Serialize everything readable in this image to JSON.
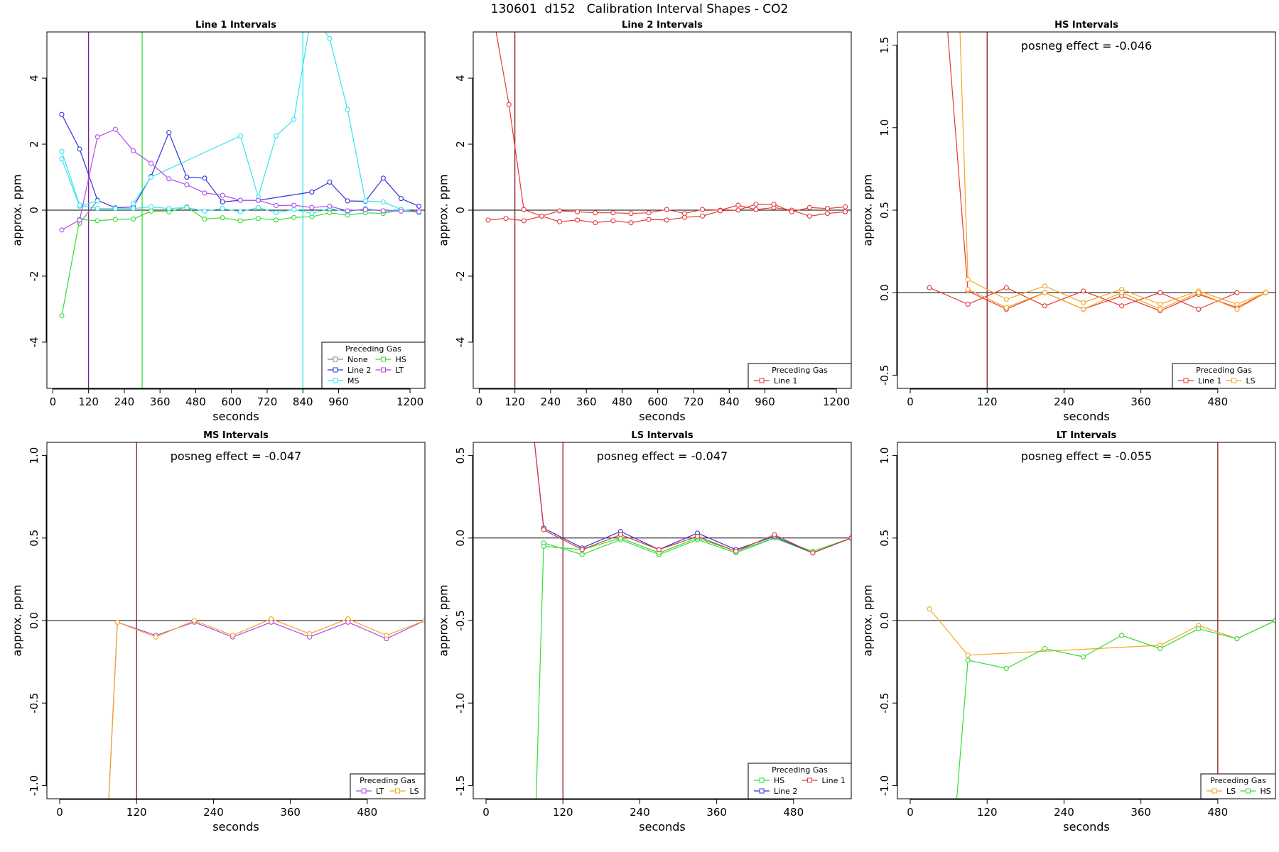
{
  "page_title": "130601  d152   Calibration Interval Shapes - CO2",
  "colors": {
    "None": "#888888",
    "Line 1": "#e53935",
    "Line 2": "#3333dd",
    "HS": "#33dd33",
    "MS": "#33e5f0",
    "LT": "#b04be8",
    "LS": "#f5a623",
    "refline_dark": "#8b1a1a",
    "axis": "#000000"
  },
  "chart_data": [
    {
      "type": "line",
      "title": "Line 1 Intervals",
      "xlabel": "seconds",
      "ylabel": "approx. ppm",
      "xlim": [
        -20,
        1250
      ],
      "ylim": [
        -5.4,
        5.4
      ],
      "xticks": [
        0,
        120,
        240,
        360,
        480,
        600,
        720,
        840,
        960,
        1200
      ],
      "yticks": [
        -4,
        -2,
        0,
        2,
        4
      ],
      "vlines": [
        {
          "x": 120,
          "color": "#7b1fa2"
        },
        {
          "x": 300,
          "color": "#33dd33"
        },
        {
          "x": 840,
          "color": "#33e5f0"
        }
      ],
      "legend": {
        "title": "Preceding Gas",
        "position": "bottom-right",
        "entries": [
          "None",
          "HS",
          "Line 2",
          "LT",
          "MS"
        ]
      },
      "series": [
        {
          "name": "None",
          "color": "#888888",
          "x": [
            90,
            150
          ],
          "y": [
            -0.4,
            0.3
          ]
        },
        {
          "name": "Line 2",
          "color": "#3333dd",
          "x": [
            30,
            90,
            150,
            210,
            270,
            330,
            390,
            450,
            510,
            570
          ],
          "y": [
            2.9,
            1.85,
            0.3,
            0.07,
            0.1,
            1.02,
            2.35,
            1.0,
            0.97,
            0.25
          ]
        },
        {
          "name": "Line 2",
          "color": "#3333dd",
          "x": [
            570,
            630,
            690,
            870,
            930,
            990,
            1050,
            1110,
            1170,
            1230
          ],
          "y": [
            0.25,
            0.3,
            0.3,
            0.55,
            0.85,
            0.28,
            0.27,
            0.97,
            0.35,
            0.12
          ]
        },
        {
          "name": "HS",
          "color": "#33dd33",
          "x": [
            30,
            90,
            150,
            210,
            270,
            330,
            390,
            450,
            510,
            570,
            630,
            690,
            750,
            810,
            870,
            930,
            990,
            1050,
            1110,
            1170,
            1230
          ],
          "y": [
            -3.2,
            -0.28,
            -0.32,
            -0.28,
            -0.27,
            -0.03,
            -0.05,
            0.1,
            -0.27,
            -0.23,
            -0.32,
            -0.25,
            -0.3,
            -0.22,
            -0.2,
            -0.08,
            -0.15,
            -0.08,
            -0.1,
            0.02,
            -0.05
          ]
        },
        {
          "name": "MS",
          "color": "#33e5f0",
          "x": [
            30,
            90,
            150
          ],
          "y": [
            1.55,
            0.12,
            0.28
          ]
        },
        {
          "name": "MS",
          "color": "#33e5f0",
          "x": [
            30,
            90,
            150,
            210,
            270,
            330,
            390,
            450,
            510,
            570,
            630,
            690,
            750,
            810,
            870,
            930,
            990,
            1050,
            1110,
            1170,
            1230
          ],
          "y": [
            1.78,
            0.15,
            0.05,
            0.05,
            0.05,
            0.1,
            0.05,
            0.08,
            -0.03,
            0.05,
            -0.05,
            0.08,
            -0.08,
            0.02,
            -0.1,
            0.05,
            -0.05,
            0.05,
            -0.02,
            0.02,
            -0.08
          ]
        },
        {
          "name": "MS",
          "color": "#33e5f0",
          "x": [
            270,
            330,
            630,
            690,
            750,
            810,
            870,
            930,
            990,
            1050,
            1110,
            1170
          ],
          "y": [
            0.2,
            1.0,
            2.25,
            0.4,
            2.25,
            2.75,
            6.0,
            5.2,
            3.05,
            0.28,
            0.25,
            0.02
          ]
        },
        {
          "name": "LT",
          "color": "#b04be8",
          "x": [
            30,
            90,
            150,
            210,
            270,
            330,
            390,
            450,
            510,
            570,
            630,
            690,
            750,
            810,
            870,
            930,
            990,
            1050,
            1110,
            1170,
            1230
          ],
          "y": [
            -0.6,
            -0.3,
            2.22,
            2.45,
            1.8,
            1.42,
            0.95,
            0.77,
            0.52,
            0.45,
            0.3,
            0.3,
            0.14,
            0.15,
            0.08,
            0.12,
            -0.02,
            0.02,
            -0.02,
            -0.03,
            -0.05
          ]
        }
      ]
    },
    {
      "type": "line",
      "title": "Line 2 Intervals",
      "xlabel": "seconds",
      "ylabel": "approx. ppm",
      "xlim": [
        -20,
        1250
      ],
      "ylim": [
        -5.4,
        5.4
      ],
      "xticks": [
        0,
        120,
        240,
        360,
        480,
        600,
        720,
        840,
        960,
        1200
      ],
      "yticks": [
        -4,
        -2,
        0,
        2,
        4
      ],
      "vlines": [
        {
          "x": 120,
          "color": "#8b1a1a"
        }
      ],
      "legend": {
        "title": "Preceding Gas",
        "position": "bottom-right",
        "entries": [
          "Line 1"
        ]
      },
      "series": [
        {
          "name": "Line 1",
          "color": "#e53935",
          "x": [
            45,
            100,
            150,
            210,
            270,
            330,
            390,
            450,
            510,
            570,
            630,
            690,
            750,
            810,
            870,
            930,
            990,
            1050,
            1110,
            1170,
            1230
          ],
          "y": [
            6.0,
            3.2,
            0.02,
            -0.18,
            -0.02,
            -0.05,
            -0.08,
            -0.08,
            -0.1,
            -0.08,
            0.02,
            -0.1,
            0.02,
            0.0,
            0.15,
            0.02,
            0.08,
            0.0,
            -0.18,
            -0.1,
            -0.05
          ]
        },
        {
          "name": "Line 1",
          "color": "#e53935",
          "x": [
            30,
            90,
            150,
            210,
            270,
            330,
            390,
            450,
            510,
            570,
            630,
            690,
            750,
            810,
            870,
            930,
            990,
            1050,
            1110,
            1170,
            1230
          ],
          "y": [
            -0.3,
            -0.25,
            -0.32,
            -0.18,
            -0.35,
            -0.3,
            -0.38,
            -0.32,
            -0.38,
            -0.28,
            -0.3,
            -0.22,
            -0.18,
            -0.02,
            0.0,
            0.18,
            0.18,
            -0.05,
            0.08,
            0.05,
            0.1
          ]
        }
      ]
    },
    {
      "type": "line",
      "title": "HS Intervals",
      "xlabel": "seconds",
      "ylabel": "approx. ppm",
      "xlim": [
        -20,
        570
      ],
      "ylim": [
        -0.58,
        1.58
      ],
      "xticks": [
        0,
        120,
        240,
        360,
        480
      ],
      "yticks": [
        -0.5,
        0.0,
        0.5,
        1.0,
        1.5
      ],
      "vlines": [
        {
          "x": 120,
          "color": "#8b1a1a"
        }
      ],
      "annotation": "posneg effect = -0.046",
      "legend": {
        "title": "Preceding Gas",
        "position": "bottom-right",
        "entries": [
          "Line 1",
          "LS"
        ]
      },
      "series": [
        {
          "name": "Line 1",
          "color": "#e53935",
          "x": [
            30,
            90,
            150,
            210,
            270,
            330,
            390,
            450,
            510,
            555
          ],
          "y": [
            0.03,
            -0.07,
            0.03,
            -0.08,
            0.01,
            -0.08,
            0.0,
            -0.1,
            0.0,
            0.0
          ]
        },
        {
          "name": "Line 1",
          "color": "#e53935",
          "x": [
            40,
            90,
            150,
            210,
            270,
            330,
            390,
            450,
            510,
            555
          ],
          "y": [
            2.5,
            0.01,
            -0.1,
            0.0,
            -0.1,
            -0.02,
            -0.11,
            -0.01,
            -0.09,
            0.0
          ]
        },
        {
          "name": "LS",
          "color": "#f5a623",
          "x": [
            75,
            90,
            150,
            210,
            270,
            330,
            390,
            450,
            510,
            555
          ],
          "y": [
            1.9,
            0.08,
            -0.04,
            0.04,
            -0.06,
            0.02,
            -0.07,
            0.01,
            -0.07,
            0.0
          ]
        },
        {
          "name": "LS",
          "color": "#f5a623",
          "x": [
            90,
            150,
            210,
            270,
            330,
            390,
            450,
            510,
            555
          ],
          "y": [
            0.02,
            -0.09,
            0.0,
            -0.1,
            0.0,
            -0.1,
            0.0,
            -0.1,
            0.0
          ]
        }
      ]
    },
    {
      "type": "line",
      "title": "MS Intervals",
      "xlabel": "seconds",
      "ylabel": "approx. ppm",
      "xlim": [
        -20,
        570
      ],
      "ylim": [
        -1.08,
        1.08
      ],
      "xticks": [
        0,
        120,
        240,
        360,
        480
      ],
      "yticks": [
        -1.0,
        -0.5,
        0.0,
        0.5,
        1.0
      ],
      "vlines": [
        {
          "x": 120,
          "color": "#8b1a1a"
        }
      ],
      "annotation": "posneg effect = -0.047",
      "legend": {
        "title": "Preceding Gas",
        "position": "bottom-right",
        "entries": [
          "LT",
          "LS"
        ]
      },
      "series": [
        {
          "name": "LT",
          "color": "#b04be8",
          "x": [
            75,
            90,
            150,
            210,
            270,
            330,
            390,
            450,
            510,
            570
          ],
          "y": [
            -1.2,
            -0.01,
            -0.09,
            -0.01,
            -0.1,
            -0.01,
            -0.1,
            -0.01,
            -0.11,
            0.0
          ]
        },
        {
          "name": "LS",
          "color": "#f5a623",
          "x": [
            75,
            90,
            150,
            210,
            270,
            330,
            390,
            450,
            510,
            570
          ],
          "y": [
            -1.2,
            -0.01,
            -0.1,
            0.0,
            -0.09,
            0.01,
            -0.08,
            0.01,
            -0.09,
            0.0
          ]
        }
      ]
    },
    {
      "type": "line",
      "title": "LS Intervals",
      "xlabel": "seconds",
      "ylabel": "approx. ppm",
      "xlim": [
        -20,
        570
      ],
      "ylim": [
        -1.58,
        0.58
      ],
      "xticks": [
        0,
        120,
        240,
        360,
        480
      ],
      "yticks": [
        -1.5,
        -1.0,
        -0.5,
        0.0,
        0.5
      ],
      "vlines": [
        {
          "x": 120,
          "color": "#8b1a1a"
        }
      ],
      "annotation": "posneg effect = -0.047",
      "legend": {
        "title": "Preceding Gas",
        "position": "bottom-right",
        "entries": [
          "HS",
          "Line 1",
          "Line 2"
        ]
      },
      "series": [
        {
          "name": "HS",
          "color": "#33dd33",
          "x": [
            78,
            90,
            150,
            210,
            270,
            330,
            390,
            450,
            510,
            570
          ],
          "y": [
            -1.6,
            -0.03,
            -0.1,
            -0.01,
            -0.1,
            -0.01,
            -0.09,
            0.0,
            -0.09,
            0.0
          ]
        },
        {
          "name": "HS",
          "color": "#33dd33",
          "x": [
            90,
            150,
            210,
            270,
            330,
            390,
            450,
            510,
            570
          ],
          "y": [
            -0.05,
            -0.07,
            0.0,
            -0.09,
            0.0,
            -0.08,
            0.0,
            -0.08,
            0.0
          ]
        },
        {
          "name": "Line 2",
          "color": "#3333dd",
          "x": [
            75,
            90,
            150,
            210,
            270,
            330,
            390,
            450,
            510,
            570
          ],
          "y": [
            0.6,
            0.06,
            -0.06,
            0.04,
            -0.07,
            0.03,
            -0.07,
            0.01,
            -0.09,
            0.0
          ]
        },
        {
          "name": "Line 1",
          "color": "#e53935",
          "x": [
            75,
            90,
            150,
            210,
            270,
            330,
            390,
            450,
            510,
            570
          ],
          "y": [
            0.6,
            0.05,
            -0.07,
            0.02,
            -0.07,
            0.01,
            -0.08,
            0.02,
            -0.09,
            0.0
          ]
        }
      ]
    },
    {
      "type": "line",
      "title": "LT Intervals",
      "xlabel": "seconds",
      "ylabel": "approx. ppm",
      "xlim": [
        -20,
        570
      ],
      "ylim": [
        -1.08,
        1.08
      ],
      "xticks": [
        0,
        120,
        240,
        360,
        480
      ],
      "yticks": [
        -1.0,
        -0.5,
        0.0,
        0.5,
        1.0
      ],
      "vlines": [
        {
          "x": 480,
          "color": "#8b1a1a"
        }
      ],
      "annotation": "posneg effect = -0.055",
      "legend": {
        "title": "Preceding Gas",
        "position": "bottom-right",
        "entries": [
          "LS",
          "HS"
        ]
      },
      "series": [
        {
          "name": "LS",
          "color": "#f5a623",
          "x": [
            30,
            90,
            390,
            450,
            510,
            570
          ],
          "y": [
            0.07,
            -0.21,
            -0.15,
            -0.03,
            -0.11,
            0.0
          ]
        },
        {
          "name": "HS",
          "color": "#33dd33",
          "x": [
            70,
            90,
            150,
            210,
            270,
            330,
            390,
            450,
            510,
            570
          ],
          "y": [
            -1.2,
            -0.24,
            -0.29,
            -0.17,
            -0.22,
            -0.09,
            -0.17,
            -0.05,
            -0.11,
            0.0
          ]
        }
      ]
    }
  ]
}
